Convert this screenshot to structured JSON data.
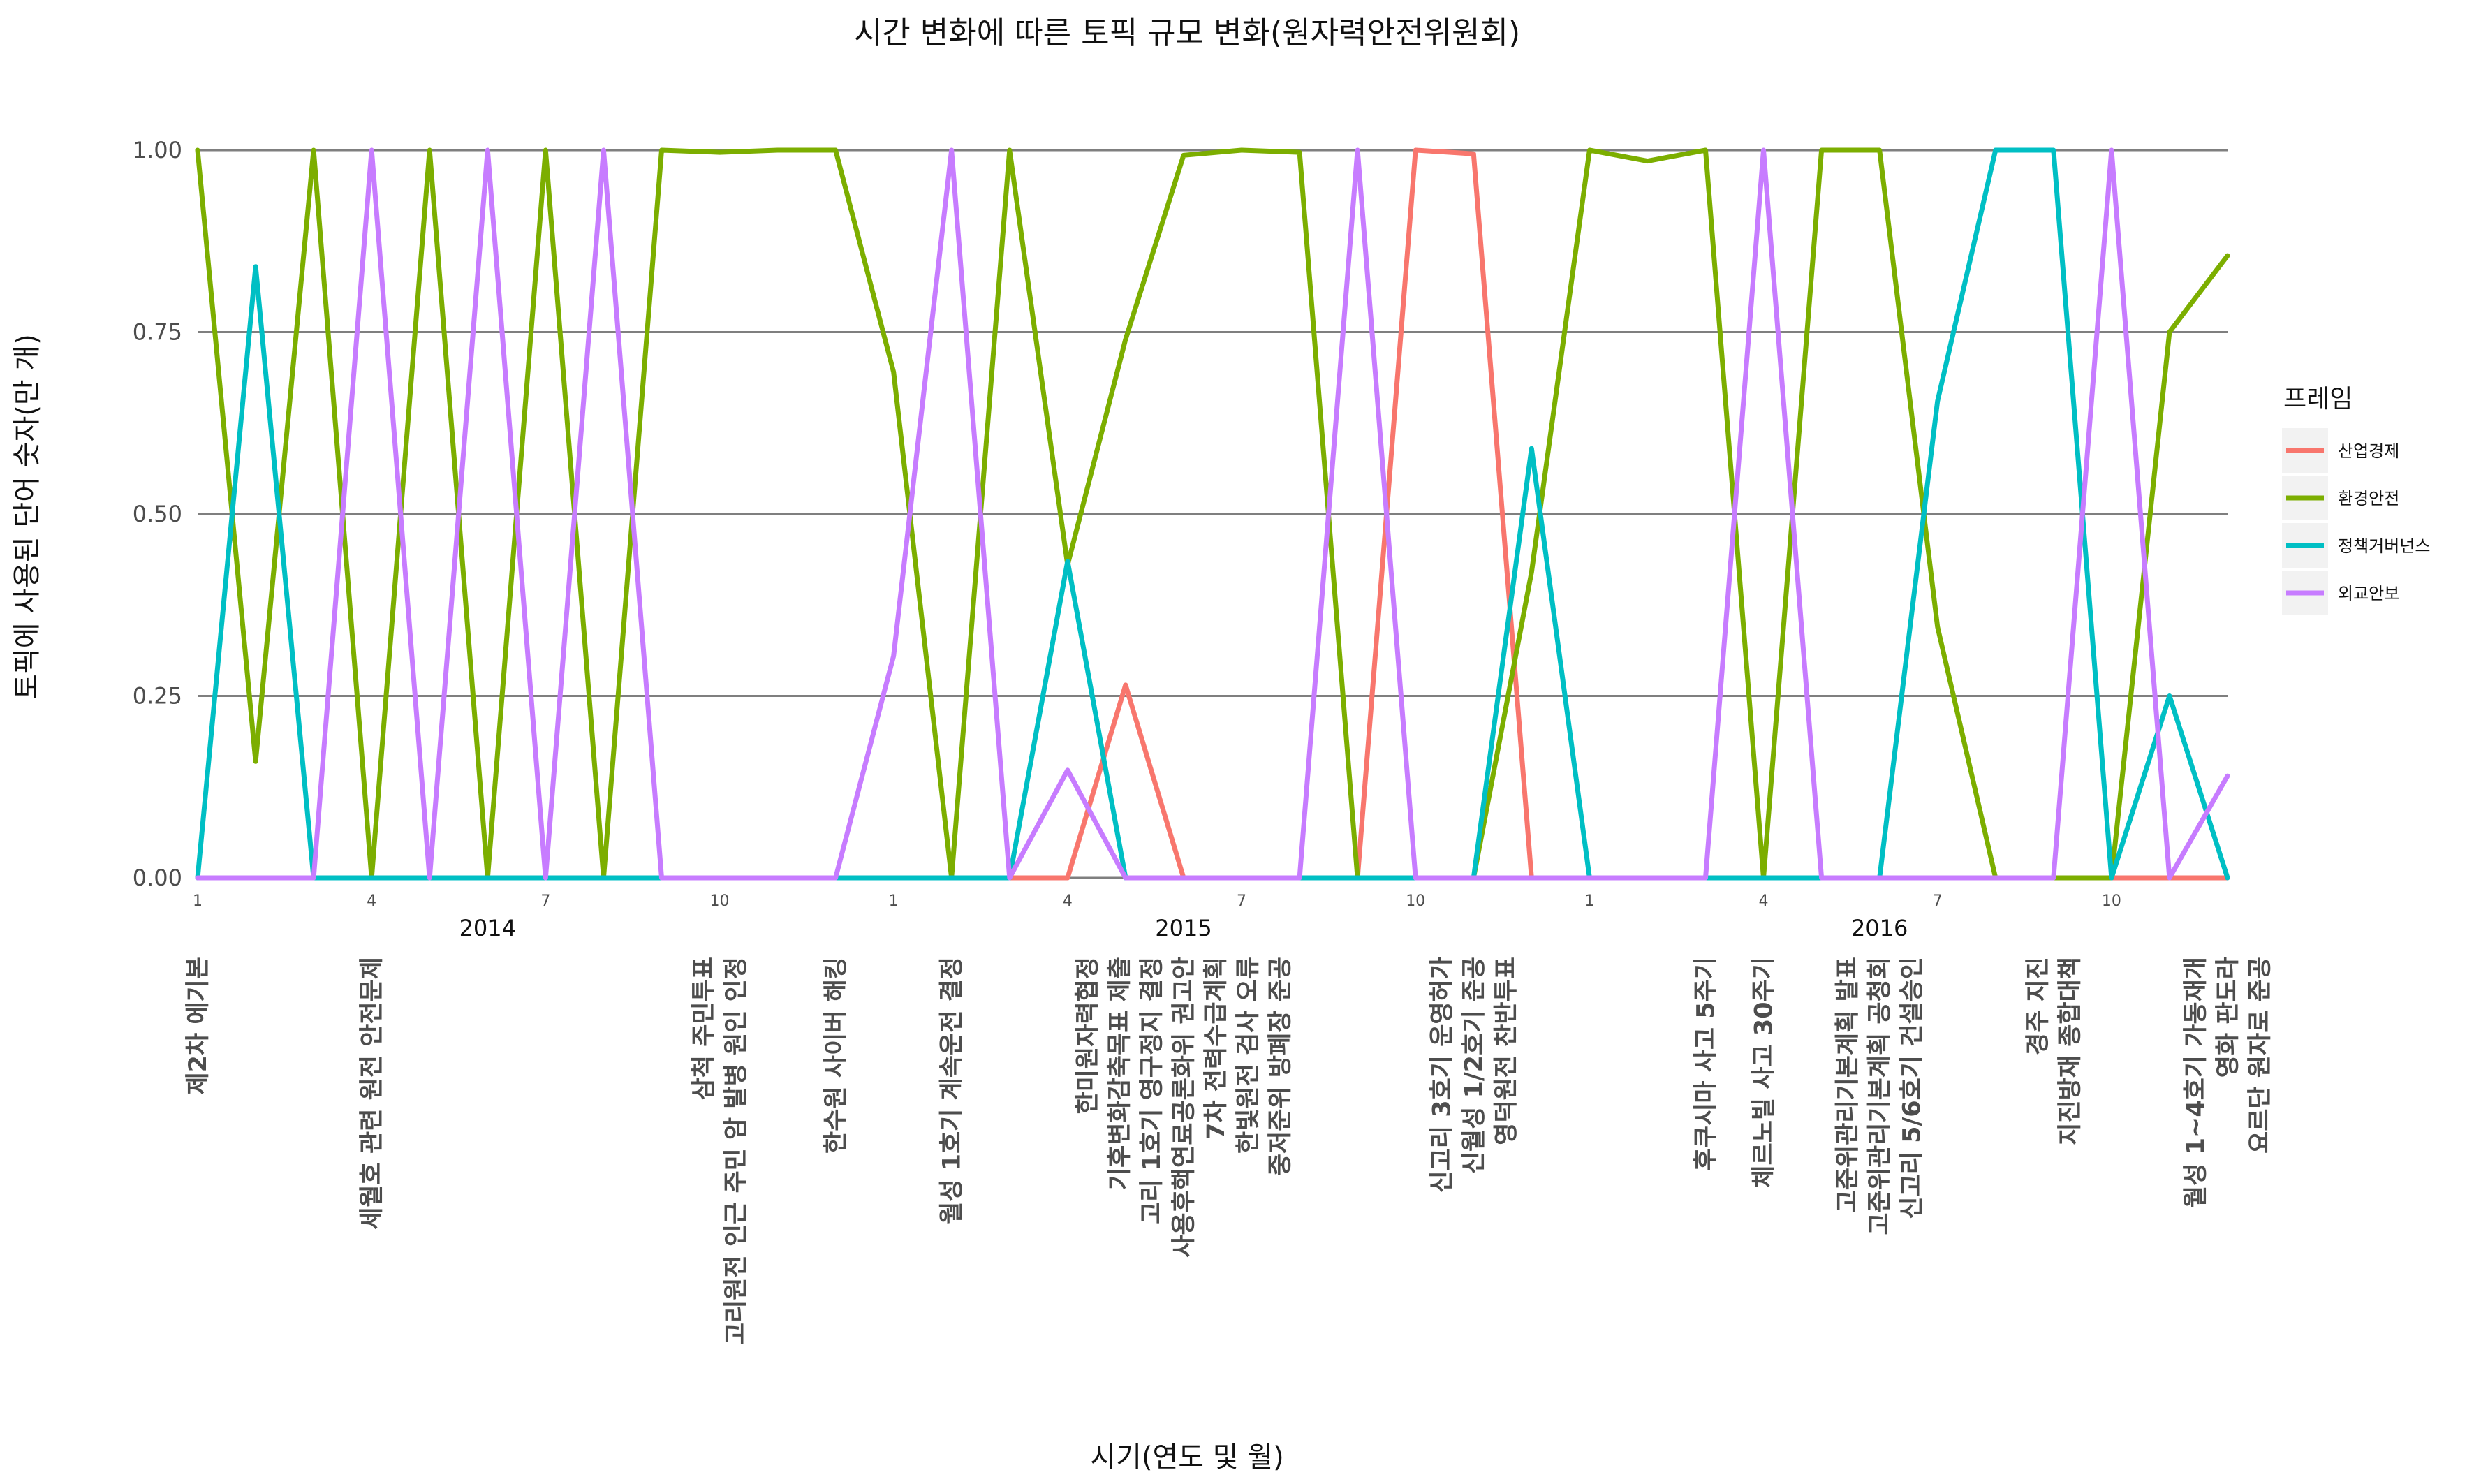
{
  "chart_data": {
    "type": "line",
    "title": "시간 변화에 따른 토픽 규모 변화(원자력안전위원회)",
    "xlabel": "시기(연도 및 월)",
    "ylabel": "토픽에 사용된 단어 숫자(만 개)",
    "ylim": [
      0,
      1
    ],
    "yticks": [
      "0.00",
      "0.25",
      "0.50",
      "0.75",
      "1.00"
    ],
    "grid": "horizontal",
    "legend": {
      "title": "프레임",
      "position": "right"
    },
    "x": [
      "2014-01",
      "2014-02",
      "2014-03",
      "2014-04",
      "2014-05",
      "2014-06",
      "2014-07",
      "2014-08",
      "2014-09",
      "2014-10",
      "2014-11",
      "2014-12",
      "2015-01",
      "2015-02",
      "2015-03",
      "2015-04",
      "2015-05",
      "2015-06",
      "2015-07",
      "2015-08",
      "2015-09",
      "2015-10",
      "2015-11",
      "2015-12",
      "2016-01",
      "2016-02",
      "2016-03",
      "2016-04",
      "2016-05",
      "2016-06",
      "2016-07",
      "2016-08",
      "2016-09",
      "2016-10",
      "2016-11",
      "2016-12"
    ],
    "x_month_labels": [
      {
        "x": "2014-01",
        "label": "1"
      },
      {
        "x": "2014-04",
        "label": "4"
      },
      {
        "x": "2014-07",
        "label": "7"
      },
      {
        "x": "2014-10",
        "label": "10"
      },
      {
        "x": "2015-01",
        "label": "1"
      },
      {
        "x": "2015-04",
        "label": "4"
      },
      {
        "x": "2015-07",
        "label": "7"
      },
      {
        "x": "2015-10",
        "label": "10"
      },
      {
        "x": "2016-01",
        "label": "1"
      },
      {
        "x": "2016-04",
        "label": "4"
      },
      {
        "x": "2016-07",
        "label": "7"
      },
      {
        "x": "2016-10",
        "label": "10"
      }
    ],
    "x_year_labels": [
      {
        "x": "2014-06",
        "label": "2014"
      },
      {
        "x": "2015-06",
        "label": "2015"
      },
      {
        "x": "2016-06",
        "label": "2016"
      }
    ],
    "series": [
      {
        "name": "산업경제",
        "color": "#F8766D",
        "x": [
          "2015-03",
          "2015-04",
          "2015-05",
          "2015-06",
          "2015-07",
          "2015-08",
          "2015-09",
          "2015-10",
          "2015-11",
          "2015-12",
          "2016-01",
          "2016-02",
          "2016-03",
          "2016-04",
          "2016-05",
          "2016-06",
          "2016-07",
          "2016-08",
          "2016-09",
          "2016-10",
          "2016-11",
          "2016-12"
        ],
        "values": [
          0,
          0,
          0.265,
          0,
          0,
          0,
          0,
          1.0,
          0.995,
          0,
          0,
          0,
          0,
          0,
          0,
          0,
          0,
          0,
          0,
          0,
          0,
          0
        ]
      },
      {
        "name": "환경안전",
        "color": "#7CAE00",
        "values": [
          1.0,
          0.16,
          1.0,
          0,
          1.0,
          0,
          1.0,
          0,
          1.0,
          0.997,
          1.0,
          1.0,
          0.695,
          0,
          1.0,
          0.43,
          0.74,
          0.993,
          1.0,
          0.997,
          0,
          0,
          0,
          0.42,
          1.0,
          0.985,
          1.0,
          0,
          1.0,
          1.0,
          0.345,
          0,
          0,
          0,
          0.75,
          0.855
        ]
      },
      {
        "name": "정책거버넌스",
        "color": "#00BFC4",
        "values": [
          0,
          0.84,
          0,
          0,
          0,
          0,
          0,
          0,
          0,
          0,
          0,
          0,
          0,
          0,
          0,
          0.435,
          0,
          0,
          0,
          0,
          0,
          0,
          0,
          0.59,
          0,
          0,
          0,
          0,
          0,
          0,
          0.655,
          1.0,
          1.0,
          0,
          0.25,
          0
        ]
      },
      {
        "name": "외교안보",
        "color": "#C77CFF",
        "values": [
          0,
          0,
          0,
          1.0,
          0,
          1.0,
          0,
          1.0,
          0,
          0,
          0,
          0,
          0.305,
          1.0,
          0,
          0.148,
          0,
          0,
          0,
          0,
          1.0,
          0,
          0,
          0,
          0,
          0,
          0,
          1.0,
          0,
          0,
          0,
          0,
          0,
          1.0,
          0,
          0.14
        ]
      }
    ],
    "events": [
      {
        "x": "2014-01",
        "lines": [
          "제2차 에기본"
        ]
      },
      {
        "x": "2014-04",
        "lines": [
          "세월호 관련 원전 안전문제"
        ]
      },
      {
        "x": "2014-10",
        "lines": [
          "삼척 주민투표",
          "고리원전 인근 주민 암 발병 원인 인정"
        ]
      },
      {
        "x": "2014-12",
        "lines": [
          "한수원 사이버 해킹"
        ]
      },
      {
        "x": "2015-02",
        "lines": [
          "월성 1호기 계속운전 결정"
        ]
      },
      {
        "x": "2015-06",
        "lines": [
          "한미원자력협정",
          "기후변화감축목표 제출",
          "고리 1호기 영구정지 결정",
          "사용후핵연료공론화위 권고안",
          "7차 전력수급계획",
          "한빛원전 검사 오류",
          "중저준위 방폐장 준공"
        ]
      },
      {
        "x": "2015-11",
        "lines": [
          "신고리 3호기 운영허가",
          "신월성 1/2호기 준공",
          "영덕원전 찬반투표"
        ]
      },
      {
        "x": "2016-03",
        "lines": [
          "후쿠시마 사고 5주기"
        ]
      },
      {
        "x": "2016-04",
        "lines": [
          "체르노빌 사고 30주기"
        ]
      },
      {
        "x": "2016-06",
        "lines": [
          "고준위관리기본계획 발표",
          "고준위관리기본계획 공청회",
          "신고리 5/6호기 건설승인"
        ]
      },
      {
        "x": "2016-09",
        "lines": [
          "경주 지진",
          "지진방재 종합대책"
        ]
      },
      {
        "x": "2016-12",
        "lines": [
          "월성 1~4호기 가동재개",
          "영화 판도라",
          "요르단 원자로 준공"
        ]
      }
    ]
  }
}
